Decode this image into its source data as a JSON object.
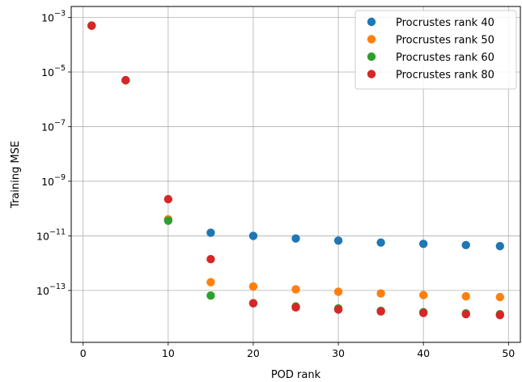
{
  "chart_data": {
    "type": "scatter",
    "title": "",
    "xlabel": "POD rank",
    "ylabel": "Training MSE",
    "xlim": [
      -1.4,
      51.4
    ],
    "ylim_log10": [
      -14.9,
      -2.6
    ],
    "y_scale": "log",
    "grid": true,
    "legend_position": "top-right",
    "x_ticks": [
      0,
      10,
      20,
      30,
      40,
      50
    ],
    "y_ticks": [
      {
        "exp": -3,
        "base": "10",
        "sup": "−3"
      },
      {
        "exp": -5,
        "base": "10",
        "sup": "−5"
      },
      {
        "exp": -7,
        "base": "10",
        "sup": "−7"
      },
      {
        "exp": -9,
        "base": "10",
        "sup": "−9"
      },
      {
        "exp": -11,
        "base": "10",
        "sup": "−11"
      },
      {
        "exp": -13,
        "base": "10",
        "sup": "−13"
      }
    ],
    "x": [
      1,
      5,
      10,
      15,
      20,
      25,
      30,
      35,
      40,
      45,
      49
    ],
    "series": [
      {
        "name": "Procrustes rank 40",
        "color": "#1f77b4",
        "values": [
          0.0005,
          5e-06,
          4e-11,
          1.3e-11,
          1e-11,
          8e-12,
          6.7e-12,
          5.7e-12,
          5.1e-12,
          4.6e-12,
          4.2e-12
        ]
      },
      {
        "name": "Procrustes rank 50",
        "color": "#ff7f0e",
        "values": [
          0.0005,
          5e-06,
          4e-11,
          2e-13,
          1.4e-13,
          1.1e-13,
          9e-14,
          7.8e-14,
          6.8e-14,
          6.1e-14,
          5.7e-14
        ]
      },
      {
        "name": "Procrustes rank 60",
        "color": "#2ca02c",
        "values": [
          0.0005,
          5e-06,
          3.6e-11,
          6.5e-14,
          3.4e-14,
          2.6e-14,
          2.2e-14,
          1.8e-14,
          1.6e-14,
          1.45e-14,
          1.35e-14
        ]
      },
      {
        "name": "Procrustes rank 80",
        "color": "#d62728",
        "values": [
          0.0005,
          5e-06,
          2.2e-10,
          1.4e-12,
          3.4e-14,
          2.4e-14,
          2e-14,
          1.7e-14,
          1.5e-14,
          1.35e-14,
          1.25e-14
        ]
      }
    ]
  }
}
